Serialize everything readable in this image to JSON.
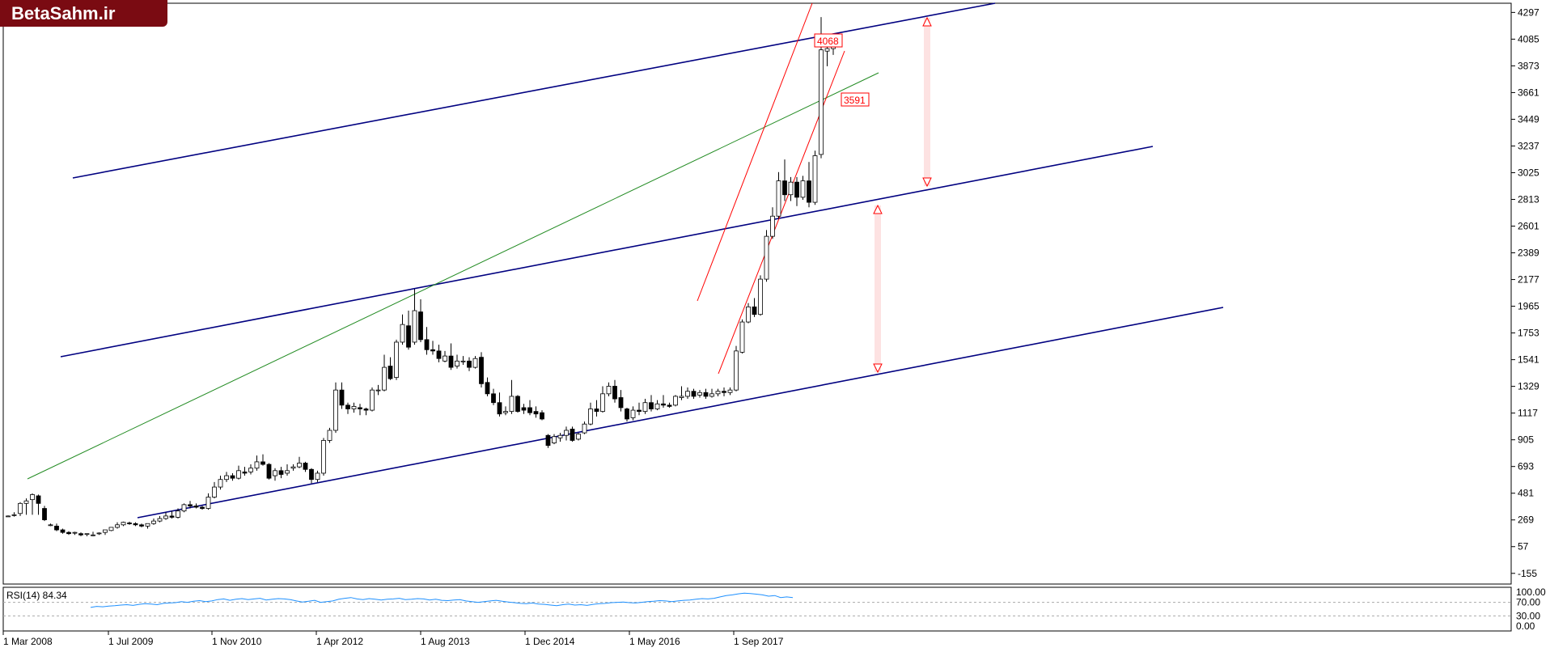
{
  "brand": {
    "logo_text": "BetaSahm.ir"
  },
  "chart_data": {
    "type": "candlestick",
    "x_ticks": [
      "1 Mar 2008",
      "1 Jul 2009",
      "1 Nov 2010",
      "1 Apr 2012",
      "1 Aug 2013",
      "1 Dec 2014",
      "1 May 2016",
      "1 Sep 2017"
    ],
    "y_ticks": [
      4297,
      4085,
      3873,
      3661,
      3449,
      3237,
      3025,
      2813,
      2601,
      2389,
      2177,
      1965,
      1753,
      1541,
      1329,
      1117,
      905,
      693,
      481,
      269,
      57,
      -155
    ],
    "ylim": [
      -240,
      4370
    ],
    "grid": false,
    "price_labels": [
      4068,
      3591
    ],
    "candles": [
      [
        300,
        305,
        300,
        295
      ],
      [
        305,
        330,
        310,
        295
      ],
      [
        320,
        410,
        400,
        300
      ],
      [
        400,
        440,
        420,
        310
      ],
      [
        430,
        480,
        470,
        310
      ],
      [
        460,
        470,
        400,
        310
      ],
      [
        360,
        380,
        270,
        260
      ],
      [
        230,
        240,
        230,
        220
      ],
      [
        220,
        240,
        190,
        180
      ],
      [
        190,
        200,
        170,
        160
      ],
      [
        170,
        180,
        160,
        150
      ],
      [
        165,
        175,
        170,
        150
      ],
      [
        160,
        170,
        150,
        140
      ],
      [
        155,
        160,
        160,
        140
      ],
      [
        150,
        175,
        150,
        140
      ],
      [
        160,
        170,
        165,
        150
      ],
      [
        170,
        180,
        190,
        150
      ],
      [
        185,
        210,
        210,
        180
      ],
      [
        210,
        250,
        230,
        200
      ],
      [
        230,
        255,
        250,
        220
      ],
      [
        245,
        255,
        240,
        230
      ],
      [
        240,
        250,
        230,
        220
      ],
      [
        230,
        240,
        220,
        210
      ],
      [
        220,
        230,
        240,
        200
      ],
      [
        240,
        280,
        260,
        230
      ],
      [
        260,
        300,
        280,
        250
      ],
      [
        280,
        330,
        300,
        270
      ],
      [
        300,
        340,
        290,
        280
      ],
      [
        290,
        360,
        340,
        280
      ],
      [
        340,
        400,
        390,
        330
      ],
      [
        390,
        420,
        380,
        360
      ],
      [
        380,
        400,
        370,
        360
      ],
      [
        370,
        380,
        360,
        350
      ],
      [
        360,
        480,
        450,
        350
      ],
      [
        450,
        570,
        530,
        440
      ],
      [
        530,
        620,
        590,
        510
      ],
      [
        590,
        650,
        620,
        570
      ],
      [
        620,
        640,
        600,
        580
      ],
      [
        600,
        700,
        660,
        590
      ],
      [
        650,
        690,
        640,
        620
      ],
      [
        650,
        710,
        680,
        630
      ],
      [
        680,
        780,
        730,
        660
      ],
      [
        730,
        790,
        710,
        700
      ],
      [
        710,
        720,
        600,
        590
      ],
      [
        620,
        680,
        660,
        580
      ],
      [
        660,
        690,
        630,
        600
      ],
      [
        640,
        710,
        660,
        620
      ],
      [
        680,
        710,
        690,
        660
      ],
      [
        690,
        770,
        720,
        680
      ],
      [
        720,
        730,
        670,
        650
      ],
      [
        670,
        680,
        590,
        560
      ],
      [
        590,
        660,
        640,
        570
      ],
      [
        640,
        920,
        900,
        620
      ],
      [
        900,
        1000,
        980,
        880
      ],
      [
        980,
        1360,
        1300,
        960
      ],
      [
        1300,
        1360,
        1180,
        1150
      ],
      [
        1180,
        1200,
        1150,
        1110
      ],
      [
        1150,
        1200,
        1170,
        1120
      ],
      [
        1160,
        1190,
        1150,
        1100
      ],
      [
        1150,
        1160,
        1140,
        1100
      ],
      [
        1140,
        1320,
        1300,
        1130
      ],
      [
        1300,
        1340,
        1300,
        1260
      ],
      [
        1300,
        1580,
        1480,
        1290
      ],
      [
        1490,
        1560,
        1390,
        1380
      ],
      [
        1400,
        1700,
        1680,
        1380
      ],
      [
        1680,
        1900,
        1820,
        1660
      ],
      [
        1810,
        1930,
        1640,
        1620
      ],
      [
        1680,
        2100,
        1930,
        1660
      ],
      [
        1920,
        2020,
        1700,
        1680
      ],
      [
        1700,
        1800,
        1620,
        1580
      ],
      [
        1620,
        1690,
        1610,
        1580
      ],
      [
        1610,
        1660,
        1550,
        1520
      ],
      [
        1530,
        1610,
        1570,
        1520
      ],
      [
        1570,
        1670,
        1480,
        1460
      ],
      [
        1490,
        1580,
        1530,
        1470
      ],
      [
        1530,
        1570,
        1530,
        1500
      ],
      [
        1530,
        1560,
        1480,
        1450
      ],
      [
        1480,
        1570,
        1550,
        1470
      ],
      [
        1560,
        1600,
        1350,
        1320
      ],
      [
        1360,
        1400,
        1270,
        1250
      ],
      [
        1270,
        1310,
        1200,
        1180
      ],
      [
        1200,
        1280,
        1110,
        1090
      ],
      [
        1120,
        1170,
        1130,
        1100
      ],
      [
        1130,
        1380,
        1250,
        1110
      ],
      [
        1250,
        1260,
        1130,
        1120
      ],
      [
        1160,
        1190,
        1140,
        1110
      ],
      [
        1160,
        1220,
        1120,
        1100
      ],
      [
        1130,
        1170,
        1110,
        1080
      ],
      [
        1120,
        1140,
        1070,
        1060
      ],
      [
        940,
        950,
        860,
        840
      ],
      [
        880,
        950,
        930,
        870
      ],
      [
        920,
        960,
        940,
        890
      ],
      [
        940,
        1010,
        980,
        900
      ],
      [
        990,
        1010,
        900,
        890
      ],
      [
        910,
        960,
        950,
        900
      ],
      [
        960,
        1050,
        1030,
        950
      ],
      [
        1030,
        1200,
        1150,
        1020
      ],
      [
        1150,
        1220,
        1130,
        1090
      ],
      [
        1130,
        1330,
        1270,
        1120
      ],
      [
        1270,
        1360,
        1330,
        1250
      ],
      [
        1330,
        1380,
        1230,
        1200
      ],
      [
        1240,
        1300,
        1160,
        1130
      ],
      [
        1150,
        1160,
        1070,
        1050
      ],
      [
        1080,
        1170,
        1140,
        1060
      ],
      [
        1140,
        1200,
        1130,
        1100
      ],
      [
        1130,
        1230,
        1200,
        1110
      ],
      [
        1200,
        1260,
        1150,
        1130
      ],
      [
        1150,
        1220,
        1190,
        1140
      ],
      [
        1190,
        1260,
        1180,
        1160
      ],
      [
        1180,
        1200,
        1170,
        1160
      ],
      [
        1180,
        1260,
        1250,
        1170
      ],
      [
        1240,
        1330,
        1250,
        1220
      ],
      [
        1250,
        1320,
        1290,
        1230
      ],
      [
        1290,
        1310,
        1250,
        1230
      ],
      [
        1260,
        1300,
        1280,
        1240
      ],
      [
        1280,
        1310,
        1250,
        1230
      ],
      [
        1250,
        1310,
        1270,
        1240
      ],
      [
        1270,
        1310,
        1290,
        1250
      ],
      [
        1290,
        1320,
        1280,
        1250
      ],
      [
        1280,
        1320,
        1300,
        1260
      ],
      [
        1300,
        1650,
        1610,
        1290
      ],
      [
        1600,
        1860,
        1840,
        1590
      ],
      [
        1840,
        1990,
        1960,
        1830
      ],
      [
        1960,
        2030,
        1900,
        1880
      ],
      [
        1900,
        2210,
        2180,
        1890
      ],
      [
        2180,
        2570,
        2520,
        2160
      ],
      [
        2520,
        2750,
        2680,
        2500
      ],
      [
        2680,
        3030,
        2960,
        2660
      ],
      [
        2960,
        3130,
        2850,
        2800
      ],
      [
        2850,
        2990,
        2950,
        2800
      ],
      [
        2950,
        2990,
        2830,
        2760
      ],
      [
        2830,
        3000,
        2960,
        2810
      ],
      [
        2960,
        3110,
        2790,
        2750
      ],
      [
        2790,
        3200,
        3160,
        2770
      ],
      [
        3170,
        4260,
        4000,
        3140
      ],
      [
        3990,
        4080,
        4010,
        3870
      ],
      [
        4010,
        4100,
        4060,
        3960
      ]
    ],
    "channels": [
      {
        "name": "upper-channel",
        "color": "#000080",
        "points": [
          [
            0,
            2960
          ],
          [
            200,
            3180
          ]
        ],
        "extend": [
          0.15,
          1.0
        ]
      },
      {
        "name": "middle-channel",
        "color": "#000080",
        "points": [
          [
            0,
            1480
          ],
          [
            200,
            3220
          ]
        ],
        "extend": [
          0,
          1.35
        ]
      },
      {
        "name": "lower-channel",
        "color": "#000080",
        "points": [
          [
            20,
            250
          ],
          [
            200,
            1900
          ]
        ],
        "extend": [
          0,
          1.35
        ]
      }
    ],
    "rsi": {
      "label": "RSI(14) 84.34",
      "y_ticks": [
        "100.00",
        "70.00",
        "30.00",
        "0.00"
      ],
      "levels": [
        70,
        30
      ],
      "values": [
        55,
        58,
        57,
        59,
        60,
        62,
        63,
        61,
        64,
        66,
        65,
        63,
        67,
        68,
        69,
        72,
        70,
        73,
        75,
        72,
        74,
        78,
        80,
        76,
        79,
        81,
        78,
        80,
        82,
        77,
        79,
        81,
        80,
        78,
        74,
        71,
        73,
        76,
        70,
        72,
        74,
        79,
        82,
        84,
        80,
        78,
        81,
        79,
        77,
        79,
        80,
        82,
        78,
        79,
        81,
        80,
        77,
        79,
        76,
        75,
        77,
        78,
        74,
        72,
        70,
        72,
        74,
        76,
        73,
        71,
        69,
        67,
        66,
        68,
        65,
        64,
        62,
        60,
        63,
        65,
        62,
        63,
        61,
        64,
        66,
        67,
        69,
        70,
        71,
        69,
        68,
        70,
        72,
        73,
        75,
        74,
        72,
        74,
        76,
        77,
        79,
        81,
        80,
        82,
        86,
        90,
        92,
        95,
        97,
        96,
        94,
        92,
        88,
        90,
        84,
        86,
        84
      ]
    }
  }
}
